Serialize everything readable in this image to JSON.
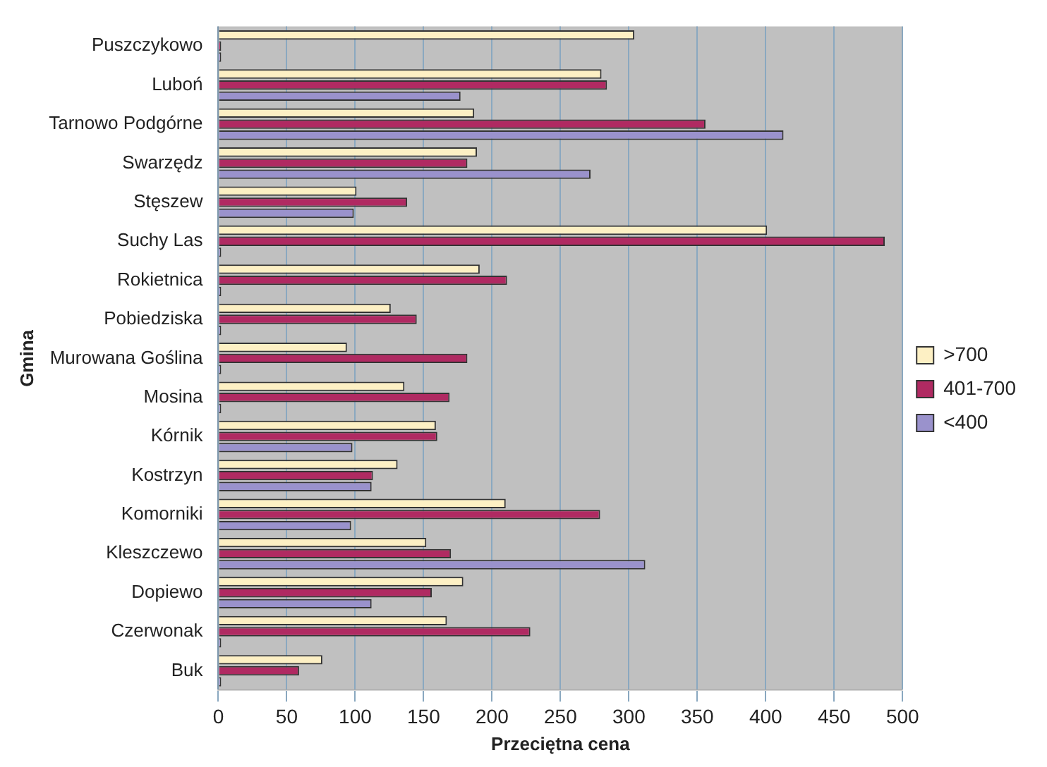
{
  "chart_data": {
    "type": "bar",
    "orientation": "horizontal",
    "xlabel": "Przeciętna cena",
    "ylabel": "Gmina",
    "categories": [
      "Puszczykowo",
      "Luboń",
      "Tarnowo Podgórne",
      "Swarzędz",
      "Stęszew",
      "Suchy Las",
      "Rokietnica",
      "Pobiedziska",
      "Murowana Goślina",
      "Mosina",
      "Kórnik",
      "Kostrzyn",
      "Komorniki",
      "Kleszczewo",
      "Dopiewo",
      "Czerwonak",
      "Buk"
    ],
    "series": [
      {
        "name": ">700",
        "color": "#fdf0c4",
        "values": [
          304,
          280,
          187,
          189,
          101,
          401,
          191,
          126,
          94,
          136,
          159,
          131,
          210,
          152,
          179,
          167,
          76
        ]
      },
      {
        "name": "401-700",
        "color": "#b02a62",
        "values": [
          0,
          284,
          356,
          182,
          138,
          487,
          211,
          145,
          182,
          169,
          160,
          113,
          279,
          170,
          156,
          228,
          59
        ]
      },
      {
        "name": "<400",
        "color": "#9a92cc",
        "values": [
          0,
          177,
          413,
          272,
          99,
          0,
          0,
          0,
          0,
          0,
          98,
          112,
          97,
          312,
          112,
          0,
          0
        ]
      }
    ],
    "xlim": [
      0,
      500
    ],
    "xticks": [
      0,
      50,
      100,
      150,
      200,
      250,
      300,
      350,
      400,
      450,
      500
    ],
    "grid": "x",
    "legend": "right"
  }
}
